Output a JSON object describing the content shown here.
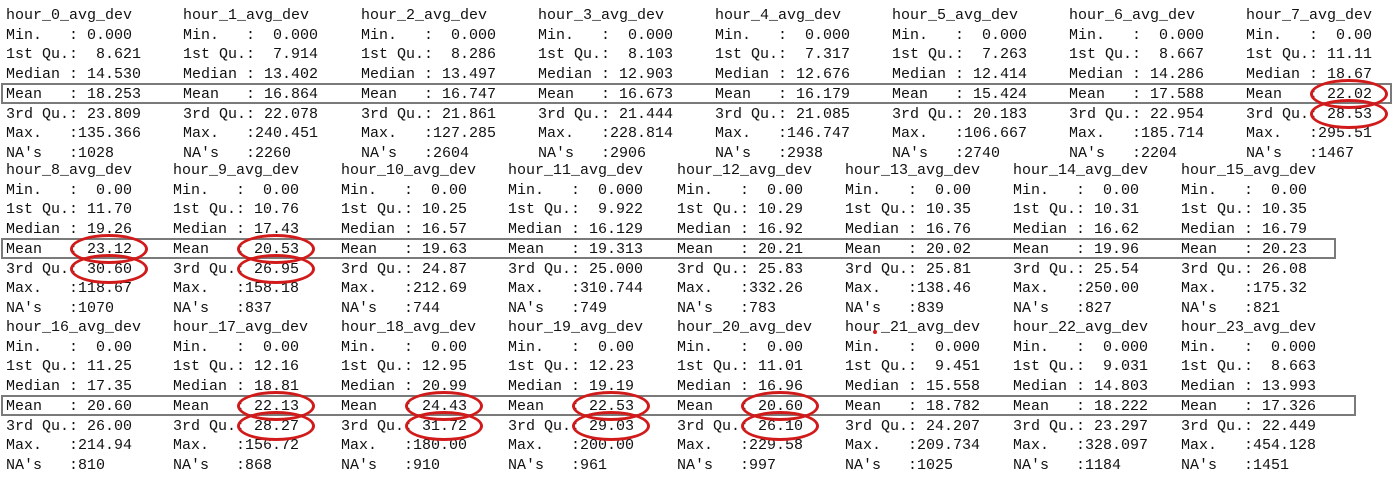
{
  "circle_color": "#d11b1b",
  "box_color": "#7a7a7a",
  "stat_labels": [
    "Min.   :",
    "1st Qu.:",
    "Median :",
    "Mean   :",
    "3rd Qu.:",
    "Max.   :",
    "NA's   :"
  ],
  "blocks": [
    {
      "columns": [
        {
          "header": "hour_0_avg_dev",
          "values": [
            " 0.000",
            "  8.621",
            " 14.530",
            " 18.253",
            " 23.809",
            "135.366",
            "1028"
          ]
        },
        {
          "header": "hour_1_avg_dev",
          "values": [
            "  0.000",
            "  7.914",
            " 13.402",
            " 16.864",
            " 22.078",
            "240.451",
            "2260"
          ]
        },
        {
          "header": "hour_2_avg_dev",
          "values": [
            "  0.000",
            "  8.286",
            " 13.497",
            " 16.747",
            " 21.861",
            "127.285",
            "2604"
          ]
        },
        {
          "header": "hour_3_avg_dev",
          "values": [
            "  0.000",
            "  8.103",
            " 12.903",
            " 16.673",
            " 21.444",
            "228.814",
            "2906"
          ]
        },
        {
          "header": "hour_4_avg_dev",
          "values": [
            "  0.000",
            "  7.317",
            " 12.676",
            " 16.179",
            " 21.085",
            "146.747",
            "2938"
          ]
        },
        {
          "header": "hour_5_avg_dev",
          "values": [
            "  0.000",
            "  7.263",
            " 12.414",
            " 15.424",
            " 20.183",
            "106.667",
            "2740"
          ]
        },
        {
          "header": "hour_6_avg_dev",
          "values": [
            "  0.000",
            "  8.667",
            " 14.286",
            " 17.588",
            " 22.954",
            "185.714",
            "2204"
          ]
        },
        {
          "header": "hour_7_avg_dev",
          "values": [
            "  0.00",
            " 11.11",
            " 18.67",
            " 22.02",
            " 28.53",
            "295.51",
            "1467"
          ]
        }
      ]
    },
    {
      "columns": [
        {
          "header": "hour_8_avg_dev",
          "values": [
            "  0.00",
            " 11.70",
            " 19.26",
            " 23.12",
            " 30.60",
            "118.67",
            "1070"
          ]
        },
        {
          "header": "hour_9_avg_dev",
          "values": [
            "  0.00",
            " 10.76",
            " 17.43",
            " 20.53",
            " 26.95",
            "158.18",
            "837"
          ]
        },
        {
          "header": "hour_10_avg_dev",
          "values": [
            "  0.00",
            " 10.25",
            " 16.57",
            " 19.63",
            " 24.87",
            "212.69",
            "744"
          ]
        },
        {
          "header": "hour_11_avg_dev",
          "values": [
            "  0.000",
            "  9.922",
            " 16.129",
            " 19.313",
            " 25.000",
            "310.744",
            "749"
          ]
        },
        {
          "header": "hour_12_avg_dev",
          "values": [
            "  0.00",
            " 10.29",
            " 16.92",
            " 20.21",
            " 25.83",
            "332.26",
            "783"
          ]
        },
        {
          "header": "hour_13_avg_dev",
          "values": [
            "  0.00",
            " 10.35",
            " 16.76",
            " 20.02",
            " 25.81",
            "138.46",
            "839"
          ]
        },
        {
          "header": "hour_14_avg_dev",
          "values": [
            "  0.00",
            " 10.31",
            " 16.62",
            " 19.96",
            " 25.54",
            "250.00",
            "827"
          ]
        },
        {
          "header": "hour_15_avg_dev",
          "values": [
            "  0.00",
            " 10.35",
            " 16.79",
            " 20.23",
            " 26.08",
            "175.32",
            "821"
          ]
        }
      ]
    },
    {
      "columns": [
        {
          "header": "hour_16_avg_dev",
          "values": [
            "  0.00",
            " 11.25",
            " 17.35",
            " 20.60",
            " 26.00",
            "214.94",
            "810"
          ]
        },
        {
          "header": "hour_17_avg_dev",
          "values": [
            "  0.00",
            " 12.16",
            " 18.81",
            " 22.13",
            " 28.27",
            "156.72",
            "868"
          ]
        },
        {
          "header": "hour_18_avg_dev",
          "values": [
            "  0.00",
            " 12.95",
            " 20.99",
            " 24.43",
            " 31.72",
            "180.00",
            "910"
          ]
        },
        {
          "header": "hour_19_avg_dev",
          "values": [
            "  0.00",
            " 12.23",
            " 19.19",
            " 22.53",
            " 29.03",
            "200.00",
            "961"
          ]
        },
        {
          "header": "hour_20_avg_dev",
          "values": [
            "  0.00",
            " 11.01",
            " 16.96",
            " 20.60",
            " 26.10",
            "229.58",
            "997"
          ]
        },
        {
          "header": "hour_21_avg_dev",
          "values": [
            "  0.000",
            "  9.451",
            " 15.558",
            " 18.782",
            " 24.207",
            "209.734",
            "1025"
          ]
        },
        {
          "header": "hour_22_avg_dev",
          "values": [
            "  0.000",
            "  9.031",
            " 14.803",
            " 18.222",
            " 23.297",
            "328.097",
            "1184"
          ]
        },
        {
          "header": "hour_23_avg_dev",
          "values": [
            "  0.000",
            "  8.663",
            " 13.993",
            " 17.326",
            " 22.449",
            "454.128",
            "1451"
          ]
        }
      ]
    }
  ],
  "highlighted_values": [
    {
      "block": 0,
      "column": 7,
      "stat": 3
    },
    {
      "block": 0,
      "column": 7,
      "stat": 4
    },
    {
      "block": 1,
      "column": 0,
      "stat": 3
    },
    {
      "block": 1,
      "column": 0,
      "stat": 4
    },
    {
      "block": 1,
      "column": 1,
      "stat": 3
    },
    {
      "block": 1,
      "column": 1,
      "stat": 4
    },
    {
      "block": 2,
      "column": 1,
      "stat": 3
    },
    {
      "block": 2,
      "column": 1,
      "stat": 4
    },
    {
      "block": 2,
      "column": 2,
      "stat": 3
    },
    {
      "block": 2,
      "column": 2,
      "stat": 4
    },
    {
      "block": 2,
      "column": 3,
      "stat": 3
    },
    {
      "block": 2,
      "column": 3,
      "stat": 4
    },
    {
      "block": 2,
      "column": 4,
      "stat": 3
    },
    {
      "block": 2,
      "column": 4,
      "stat": 4
    }
  ]
}
